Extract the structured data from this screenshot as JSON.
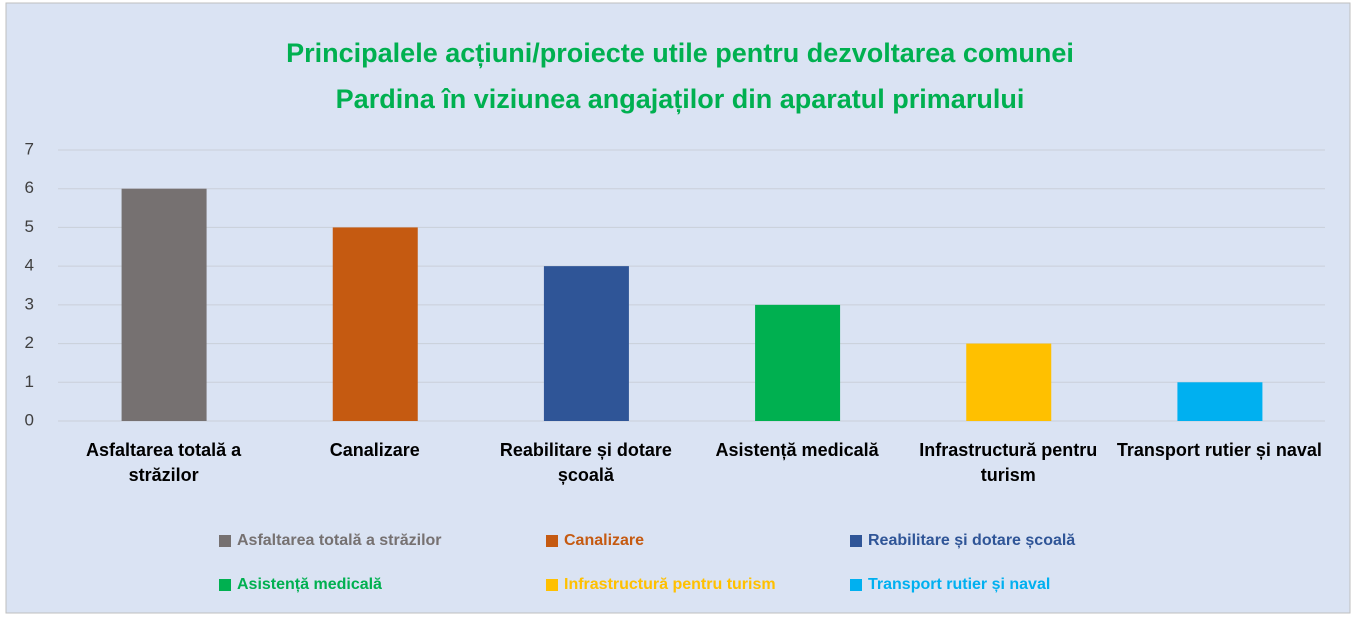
{
  "chart_data": {
    "type": "bar",
    "title": [
      "Principalele acțiuni/proiecte utile  pentru dezvoltarea comunei",
      "Pardina în viziunea  angajaților din aparatul primarului"
    ],
    "title_color": "#00b050",
    "categories": [
      "Asfaltarea totală a străzilor",
      "Canalizare",
      "Reabilitare și dotare școală",
      "Asistență medicală",
      "Infrastructură pentru turism",
      "Transport rutier și naval"
    ],
    "values": [
      6,
      5,
      4,
      3,
      2,
      1
    ],
    "colors": [
      "#767171",
      "#c55a11",
      "#2f5597",
      "#00b050",
      "#ffc000",
      "#00b0f0"
    ],
    "ylim": [
      0,
      7
    ],
    "yticks": [
      0,
      1,
      2,
      3,
      4,
      5,
      6,
      7
    ],
    "grid": true,
    "legend": "bottom"
  }
}
